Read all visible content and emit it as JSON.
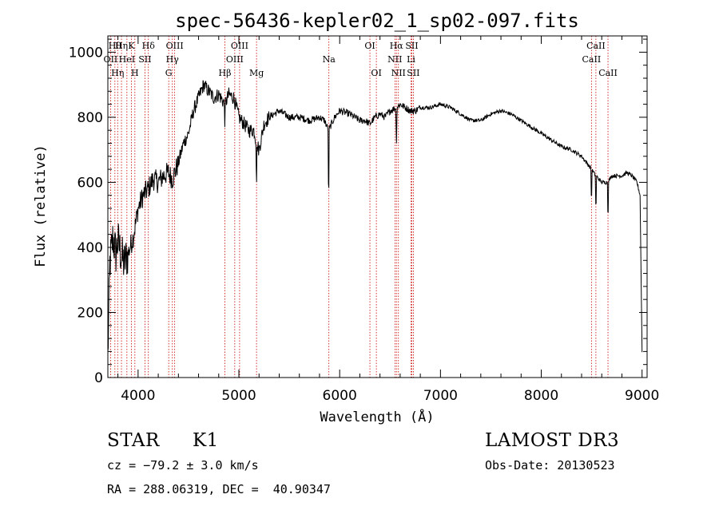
{
  "chart_data": {
    "type": "line",
    "title": "spec-56436-kepler02_1_sp02-097.fits",
    "xlabel": "Wavelength (Å)",
    "ylabel": "Flux (relative)",
    "xlim": [
      3700,
      9050
    ],
    "ylim": [
      0,
      1050
    ],
    "xticks": [
      4000,
      5000,
      6000,
      7000,
      8000,
      9000
    ],
    "yticks": [
      0,
      200,
      400,
      600,
      800,
      1000
    ],
    "series": [
      {
        "name": "flux",
        "anchors_x": [
          3700,
          3720,
          3750,
          3780,
          3800,
          3830,
          3860,
          3900,
          3950,
          3980,
          4000,
          4050,
          4100,
          4150,
          4200,
          4250,
          4300,
          4340,
          4400,
          4450,
          4500,
          4550,
          4600,
          4650,
          4700,
          4750,
          4800,
          4861,
          4900,
          4950,
          5000,
          5050,
          5100,
          5150,
          5175,
          5200,
          5250,
          5300,
          5400,
          5500,
          5600,
          5700,
          5800,
          5850,
          5890,
          5950,
          6000,
          6100,
          6200,
          6250,
          6300,
          6350,
          6400,
          6450,
          6500,
          6563,
          6600,
          6650,
          6700,
          6750,
          6800,
          6900,
          7000,
          7100,
          7200,
          7300,
          7400,
          7500,
          7600,
          7700,
          7800,
          7900,
          8000,
          8100,
          8200,
          8300,
          8400,
          8450,
          8498,
          8542,
          8600,
          8662,
          8700,
          8800,
          8850,
          8900,
          8950,
          8980,
          9000
        ],
        "anchors_y": [
          60,
          350,
          430,
          380,
          420,
          380,
          350,
          380,
          430,
          480,
          520,
          560,
          580,
          610,
          600,
          620,
          630,
          610,
          660,
          720,
          750,
          820,
          860,
          900,
          880,
          860,
          870,
          840,
          870,
          860,
          800,
          780,
          760,
          760,
          720,
          700,
          780,
          800,
          820,
          800,
          800,
          790,
          800,
          790,
          760,
          800,
          820,
          810,
          790,
          790,
          780,
          800,
          810,
          800,
          820,
          830,
          840,
          830,
          820,
          820,
          830,
          830,
          840,
          830,
          810,
          790,
          790,
          810,
          820,
          810,
          790,
          770,
          750,
          730,
          710,
          700,
          680,
          660,
          640,
          620,
          600,
          600,
          620,
          620,
          630,
          620,
          600,
          560,
          80
        ]
      }
    ],
    "absorption_lines": [
      {
        "x": 4861,
        "depth": 60
      },
      {
        "x": 5175,
        "depth": 130
      },
      {
        "x": 5890,
        "depth": 260
      },
      {
        "x": 6563,
        "depth": 120
      },
      {
        "x": 8498,
        "depth": 120
      },
      {
        "x": 8542,
        "depth": 130
      },
      {
        "x": 8662,
        "depth": 130
      }
    ],
    "line_markers": [
      {
        "x": 3727,
        "label": "OII",
        "row": 1
      },
      {
        "x": 3770,
        "label": "Hθ",
        "row": 0
      },
      {
        "x": 3797,
        "label": "Hη",
        "row": 2
      },
      {
        "x": 3835,
        "label": "Hη",
        "row": 0
      },
      {
        "x": 3889,
        "label": "HeI",
        "row": 1
      },
      {
        "x": 3934,
        "label": "K",
        "row": 0
      },
      {
        "x": 3968,
        "label": "H",
        "row": 2
      },
      {
        "x": 4068,
        "label": "SII",
        "row": 1
      },
      {
        "x": 4102,
        "label": "Hδ",
        "row": 0
      },
      {
        "x": 4304,
        "label": "G",
        "row": 2
      },
      {
        "x": 4340,
        "label": "Hγ",
        "row": 1
      },
      {
        "x": 4363,
        "label": "OIII",
        "row": 0
      },
      {
        "x": 4861,
        "label": "Hβ",
        "row": 2
      },
      {
        "x": 4959,
        "label": "OIII",
        "row": 1
      },
      {
        "x": 5007,
        "label": "OIII",
        "row": 0
      },
      {
        "x": 5175,
        "label": "Mg",
        "row": 2
      },
      {
        "x": 5893,
        "label": "Na",
        "row": 1
      },
      {
        "x": 6300,
        "label": "OI",
        "row": 0
      },
      {
        "x": 6364,
        "label": "OI",
        "row": 2
      },
      {
        "x": 6548,
        "label": "NII",
        "row": 1
      },
      {
        "x": 6563,
        "label": "Hα",
        "row": 0
      },
      {
        "x": 6583,
        "label": "NII",
        "row": 2
      },
      {
        "x": 6708,
        "label": "Li",
        "row": 1
      },
      {
        "x": 6716,
        "label": "SII",
        "row": 0
      },
      {
        "x": 6731,
        "label": "SII",
        "row": 2
      },
      {
        "x": 8498,
        "label": "CaII",
        "row": 1
      },
      {
        "x": 8542,
        "label": "CaII",
        "row": 0
      },
      {
        "x": 8662,
        "label": "CaII",
        "row": 2
      }
    ]
  },
  "info": {
    "object_class": "STAR",
    "subclass": "K1",
    "survey": "LAMOST DR3",
    "cz": "cz = −79.2 ± 3.0 km/s",
    "obs_date": "Obs-Date: 20130523",
    "coords": "RA = 288.06319, DEC =  40.90347"
  },
  "colors": {
    "spectrum": "#000000",
    "marker_line": "#cc0000",
    "axes": "#000000"
  }
}
